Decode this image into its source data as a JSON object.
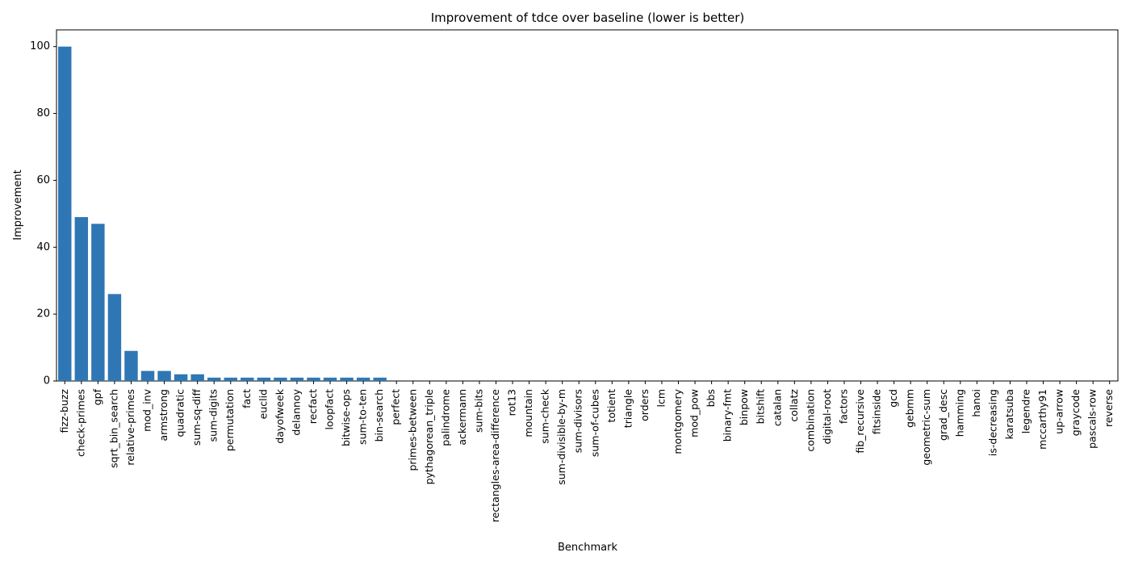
{
  "chart_data": {
    "type": "bar",
    "title": "Improvement of tdce over baseline (lower is better)",
    "xlabel": "Benchmark",
    "ylabel": "Improvement",
    "ylim": [
      0,
      105
    ],
    "yticks": [
      0,
      20,
      40,
      60,
      80,
      100
    ],
    "bar_color": "#2f77b4",
    "categories": [
      "fizz-buzz",
      "check-primes",
      "gpf",
      "sqrt_bin_search",
      "relative-primes",
      "mod_inv",
      "armstrong",
      "quadratic",
      "sum-sq-diff",
      "sum-digits",
      "permutation",
      "fact",
      "euclid",
      "dayofweek",
      "delannoy",
      "recfact",
      "loopfact",
      "bitwise-ops",
      "sum-to-ten",
      "bin-search",
      "perfect",
      "primes-between",
      "pythagorean_triple",
      "palindrome",
      "ackermann",
      "sum-bits",
      "rectangles-area-difference",
      "rot13",
      "mountain",
      "sum-check",
      "sum-divisible-by-m",
      "sum-divisors",
      "sum-of-cubes",
      "totient",
      "triangle",
      "orders",
      "lcm",
      "montgomery",
      "mod_pow",
      "bbs",
      "binary-fmt",
      "binpow",
      "bitshift",
      "catalan",
      "collatz",
      "combination",
      "digital-root",
      "factors",
      "fib_recursive",
      "fitsinside",
      "gcd",
      "gebmm",
      "geometric-sum",
      "grad_desc",
      "hamming",
      "hanoi",
      "is-decreasing",
      "karatsuba",
      "legendre",
      "mccarthy91",
      "up-arrow",
      "graycode",
      "pascals-row",
      "reverse"
    ],
    "values": [
      100,
      49,
      47,
      26,
      9,
      3,
      3,
      2,
      2,
      1,
      1,
      1,
      1,
      1,
      1,
      1,
      1,
      1,
      1,
      1,
      0,
      0,
      0,
      0,
      0,
      0,
      0,
      0,
      0,
      0,
      0,
      0,
      0,
      0,
      0,
      0,
      0,
      0,
      0,
      0,
      0,
      0,
      0,
      0,
      0,
      0,
      0,
      0,
      0,
      0,
      0,
      0,
      0,
      0,
      0,
      0,
      0,
      0,
      0,
      0,
      0,
      0,
      0,
      0
    ],
    "grid": false,
    "legend": "none"
  }
}
